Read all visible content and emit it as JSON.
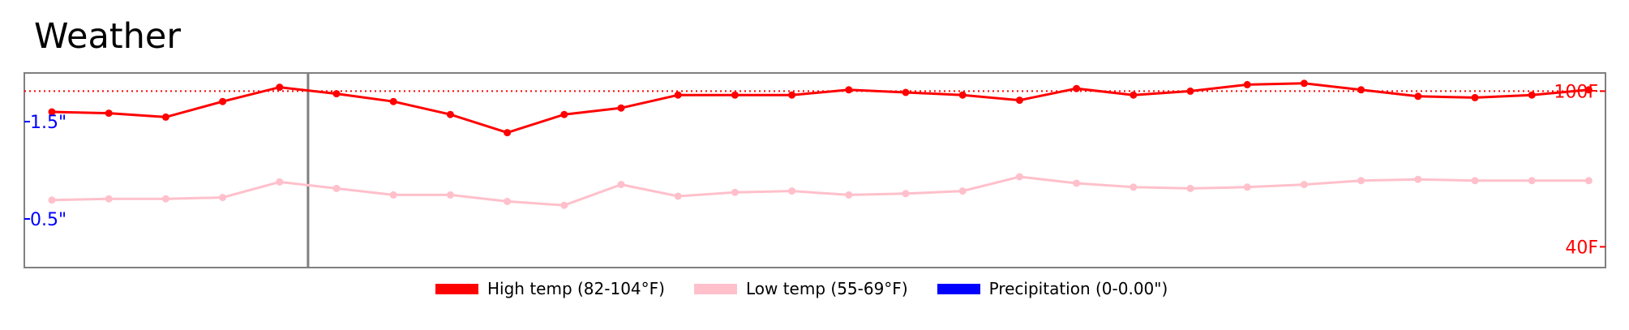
{
  "title": "Weather",
  "chart_data": {
    "type": "line",
    "title": "Weather",
    "left_axis": {
      "ticks": [
        {
          "value": 1.5,
          "label": "1.5\""
        },
        {
          "value": 0.5,
          "label": "0.5\""
        }
      ],
      "color": "#0000ff"
    },
    "right_axis": {
      "ticks": [
        {
          "value": 100,
          "label": "100F"
        },
        {
          "value": 40,
          "label": "40F"
        }
      ],
      "color": "#ff0000",
      "ylim": [
        32,
        107
      ]
    },
    "reference_line": {
      "value": 100,
      "style": "dotted",
      "color": "#ff0000"
    },
    "highlight_marker_index": 4.5,
    "series": [
      {
        "name": "High temp (82-104°F)",
        "color": "#ff0000",
        "values": [
          92,
          91.5,
          90,
          96,
          101.5,
          99,
          96,
          91,
          84,
          91,
          93.5,
          98.5,
          98.5,
          98.5,
          100.5,
          99.5,
          98.5,
          96.5,
          101,
          98.5,
          100,
          102.5,
          103,
          100.5,
          98,
          97.5,
          98.5,
          100.5
        ]
      },
      {
        "name": "Low temp (55-69°F)",
        "color": "#ffc0cb",
        "values": [
          58,
          58.5,
          58.5,
          59,
          65,
          62.5,
          60,
          60,
          57.5,
          56,
          64,
          59.5,
          61,
          61.5,
          60,
          60.5,
          61.5,
          67,
          64.5,
          63,
          62.5,
          63,
          64,
          65.5,
          66,
          65.5,
          65.5,
          65.5
        ]
      }
    ]
  },
  "legend": {
    "high": {
      "label": "High temp (82-104°F)",
      "color": "#ff0000"
    },
    "low": {
      "label": "Low temp (55-69°F)",
      "color": "#ffc0cb"
    },
    "precip": {
      "label": "Precipitation (0-0.00\")",
      "color": "#0000ff"
    }
  }
}
